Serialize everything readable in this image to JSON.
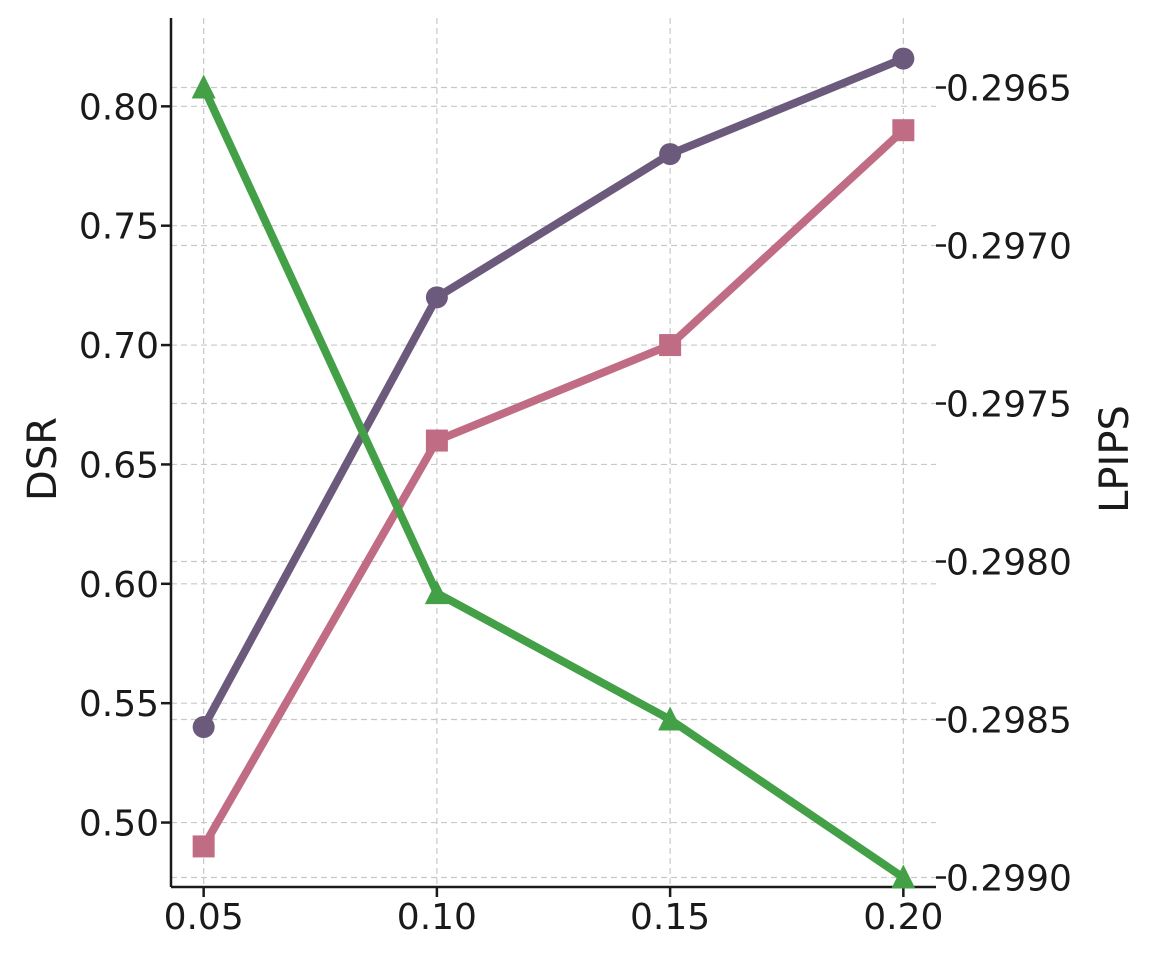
{
  "chart_data": {
    "type": "line",
    "x": [
      0.05,
      0.1,
      0.15,
      0.2
    ],
    "x_tick_labels": [
      "0.05",
      "0.10",
      "0.15",
      "0.20"
    ],
    "xlim": [
      0.043,
      0.207
    ],
    "ylabel": "DSR",
    "ylim": [
      0.473,
      0.837
    ],
    "y_tick_values": [
      0.5,
      0.55,
      0.6,
      0.65,
      0.7,
      0.75,
      0.8
    ],
    "y_tick_labels": [
      "0.50",
      "0.55",
      "0.60",
      "0.65",
      "0.70",
      "0.75",
      "0.80"
    ],
    "y2label": "LPIPS",
    "y2_inverted": true,
    "y2lim": [
      0.29628,
      0.29903
    ],
    "y2_tick_values": [
      0.2965,
      0.297,
      0.2975,
      0.298,
      0.2985,
      0.299
    ],
    "y2_tick_labels": [
      "0.2965",
      "0.2970",
      "0.2975",
      "0.2980",
      "0.2985",
      "0.2990"
    ],
    "grid": true,
    "series": [
      {
        "axis": "left",
        "marker": "circle",
        "color": "#6b5a7b",
        "values": [
          0.54,
          0.72,
          0.78,
          0.82
        ]
      },
      {
        "axis": "left",
        "marker": "square",
        "color": "#c06c84",
        "values": [
          0.49,
          0.66,
          0.7,
          0.79
        ]
      },
      {
        "axis": "right",
        "marker": "triangle",
        "color": "#43a047",
        "values": [
          0.2965,
          0.2981,
          0.2985,
          0.299
        ]
      }
    ]
  }
}
